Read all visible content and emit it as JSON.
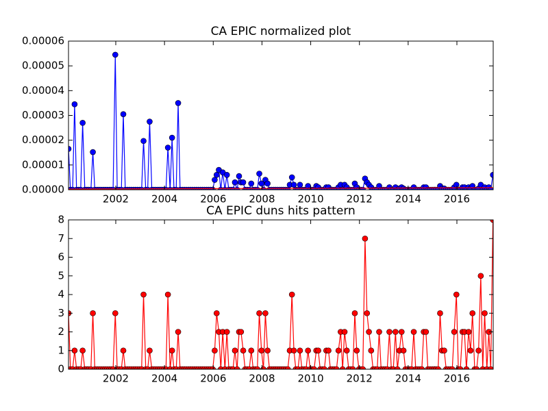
{
  "chart_data": [
    {
      "type": "line",
      "title": "CA EPIC normalized plot",
      "x": [
        2000.06,
        2000.14,
        2000.23,
        2000.31,
        2000.39,
        2000.48,
        2000.56,
        2000.64,
        2000.73,
        2000.81,
        2000.89,
        2000.98,
        2001.06,
        2001.14,
        2001.23,
        2001.31,
        2001.39,
        2001.48,
        2001.56,
        2001.64,
        2001.73,
        2001.81,
        2001.89,
        2001.98,
        2002.06,
        2002.14,
        2002.23,
        2002.31,
        2002.39,
        2002.48,
        2002.56,
        2002.64,
        2002.73,
        2002.81,
        2002.89,
        2002.98,
        2003.06,
        2003.14,
        2003.23,
        2003.31,
        2003.39,
        2003.48,
        2003.56,
        2003.64,
        2003.73,
        2003.81,
        2003.89,
        2003.98,
        2004.06,
        2004.14,
        2004.23,
        2004.31,
        2004.39,
        2004.48,
        2004.56,
        2004.64,
        2004.73,
        2004.81,
        2004.89,
        2004.98,
        2005.06,
        2005.14,
        2005.23,
        2005.31,
        2005.39,
        2005.48,
        2005.56,
        2005.64,
        2005.73,
        2005.81,
        2005.89,
        2005.98,
        2006.06,
        2006.14,
        2006.23,
        2006.31,
        2006.39,
        2006.48,
        2006.56,
        2006.64,
        2006.73,
        2006.81,
        2006.89,
        2006.98,
        2007.06,
        2007.14,
        2007.23,
        2007.31,
        2007.39,
        2007.48,
        2007.56,
        2007.64,
        2007.73,
        2007.81,
        2007.89,
        2007.98,
        2008.06,
        2008.14,
        2008.23,
        2008.31,
        2008.39,
        2008.48,
        2008.56,
        2008.64,
        2008.73,
        2008.81,
        2008.89,
        2008.98,
        2009.06,
        2009.14,
        2009.23,
        2009.31,
        2009.39,
        2009.48,
        2009.56,
        2009.64,
        2009.73,
        2009.81,
        2009.89,
        2009.98,
        2010.06,
        2010.14,
        2010.23,
        2010.31,
        2010.39,
        2010.48,
        2010.56,
        2010.64,
        2010.73,
        2010.81,
        2010.89,
        2010.98,
        2011.06,
        2011.14,
        2011.23,
        2011.31,
        2011.39,
        2011.48,
        2011.56,
        2011.64,
        2011.73,
        2011.81,
        2011.89,
        2011.98,
        2012.06,
        2012.14,
        2012.23,
        2012.31,
        2012.39,
        2012.48,
        2012.56,
        2012.64,
        2012.73,
        2012.81,
        2012.89,
        2012.98,
        2013.06,
        2013.14,
        2013.23,
        2013.31,
        2013.39,
        2013.48,
        2013.56,
        2013.64,
        2013.73,
        2013.81,
        2013.89,
        2013.98,
        2014.06,
        2014.14,
        2014.23,
        2014.31,
        2014.39,
        2014.48,
        2014.56,
        2014.64,
        2014.73,
        2014.81,
        2014.89,
        2014.98,
        2015.06,
        2015.14,
        2015.23,
        2015.31,
        2015.39,
        2015.48,
        2015.56,
        2015.64,
        2015.73,
        2015.81,
        2015.89,
        2015.98,
        2016.06,
        2016.14,
        2016.23,
        2016.31,
        2016.39,
        2016.48,
        2016.56,
        2016.64,
        2016.73,
        2016.81,
        2016.89,
        2016.98,
        2017.06,
        2017.14,
        2017.23,
        2017.31,
        2017.39,
        2017.48
      ],
      "series": [
        {
          "color": "#0000ff",
          "markers": true,
          "values": [
            1.65e-05,
            0,
            0,
            3.45e-05,
            0,
            0,
            0,
            2.7e-05,
            0,
            0,
            0,
            0,
            1.52e-05,
            0,
            0,
            0,
            0,
            0,
            0,
            0,
            0,
            0,
            0,
            5.45e-05,
            0,
            0,
            0,
            3.05e-05,
            0,
            0,
            0,
            0,
            0,
            0,
            0,
            0,
            0,
            1.97e-05,
            0,
            0,
            2.75e-05,
            0,
            0,
            0,
            0,
            0,
            0,
            0,
            0,
            1.7e-05,
            0,
            2.1e-05,
            0,
            0,
            3.5e-05,
            0,
            0,
            0,
            0,
            0,
            0,
            0,
            0,
            0,
            0,
            0,
            0,
            0,
            0,
            0,
            0,
            0,
            4e-06,
            6e-06,
            8e-06,
            0,
            7e-06,
            0,
            6e-06,
            0,
            0,
            0,
            3e-06,
            0,
            5.5e-06,
            3e-06,
            3e-06,
            0,
            0,
            0,
            2.5e-06,
            0,
            0,
            0,
            6.5e-06,
            2.5e-06,
            0,
            4e-06,
            2.5e-06,
            0,
            0,
            0,
            0,
            0,
            0,
            0,
            0,
            0,
            0,
            2e-06,
            5e-06,
            2e-06,
            0,
            0,
            2e-06,
            0,
            0,
            0,
            1.5e-06,
            0,
            0,
            0,
            1.5e-06,
            1e-06,
            0,
            0,
            0,
            1e-06,
            1e-06,
            0,
            0,
            0,
            0,
            1e-06,
            2e-06,
            0,
            2e-06,
            1e-06,
            0,
            0,
            0,
            2.5e-06,
            1e-06,
            0,
            0,
            0,
            4.5e-06,
            3e-06,
            2e-06,
            1e-06,
            0,
            0,
            0,
            1.5e-06,
            0,
            0,
            0,
            0,
            1e-06,
            0,
            0,
            1e-06,
            0,
            5e-07,
            1e-06,
            5e-07,
            0,
            0,
            0,
            0,
            1e-06,
            0,
            0,
            0,
            0,
            1e-06,
            1e-06,
            0,
            0,
            0,
            0,
            0,
            0,
            1.5e-06,
            5e-07,
            5e-07,
            0,
            0,
            0,
            0,
            1e-06,
            2e-06,
            0,
            0,
            1e-06,
            1e-06,
            0,
            1e-06,
            5e-07,
            1.5e-06,
            0,
            0,
            5e-07,
            2e-06,
            0,
            1e-06,
            0,
            1e-06,
            0,
            6e-06
          ]
        },
        {
          "color": "#ff0000",
          "markers": false,
          "x": [
            2000.06,
            2017.48
          ],
          "values": [
            3e-07,
            8e-07
          ]
        }
      ],
      "xlim": [
        2000.06,
        2017.49
      ],
      "xticks": [
        2002,
        2004,
        2006,
        2008,
        2010,
        2012,
        2014,
        2016
      ],
      "ylim": [
        0,
        6e-05
      ],
      "yticks": [
        {
          "value": 0,
          "label": "0.00000"
        },
        {
          "value": 1e-05,
          "label": "0.00001"
        },
        {
          "value": 2e-05,
          "label": "0.00002"
        },
        {
          "value": 3e-05,
          "label": "0.00003"
        },
        {
          "value": 4e-05,
          "label": "0.00004"
        },
        {
          "value": 5e-05,
          "label": "0.00005"
        },
        {
          "value": 6e-05,
          "label": "0.00006"
        }
      ]
    },
    {
      "type": "line",
      "title": "CA EPIC duns hits pattern",
      "x": [
        2000.06,
        2000.14,
        2000.23,
        2000.31,
        2000.39,
        2000.48,
        2000.56,
        2000.64,
        2000.73,
        2000.81,
        2000.89,
        2000.98,
        2001.06,
        2001.14,
        2001.23,
        2001.31,
        2001.39,
        2001.48,
        2001.56,
        2001.64,
        2001.73,
        2001.81,
        2001.89,
        2001.98,
        2002.06,
        2002.14,
        2002.23,
        2002.31,
        2002.39,
        2002.48,
        2002.56,
        2002.64,
        2002.73,
        2002.81,
        2002.89,
        2002.98,
        2003.06,
        2003.14,
        2003.23,
        2003.31,
        2003.39,
        2003.48,
        2003.56,
        2003.64,
        2003.73,
        2003.81,
        2003.89,
        2003.98,
        2004.06,
        2004.14,
        2004.23,
        2004.31,
        2004.39,
        2004.48,
        2004.56,
        2004.64,
        2004.73,
        2004.81,
        2004.89,
        2004.98,
        2005.06,
        2005.14,
        2005.23,
        2005.31,
        2005.39,
        2005.48,
        2005.56,
        2005.64,
        2005.73,
        2005.81,
        2005.89,
        2005.98,
        2006.06,
        2006.14,
        2006.23,
        2006.31,
        2006.39,
        2006.48,
        2006.56,
        2006.64,
        2006.73,
        2006.81,
        2006.89,
        2006.98,
        2007.06,
        2007.14,
        2007.23,
        2007.31,
        2007.39,
        2007.48,
        2007.56,
        2007.64,
        2007.73,
        2007.81,
        2007.89,
        2007.98,
        2008.06,
        2008.14,
        2008.23,
        2008.31,
        2008.39,
        2008.48,
        2008.56,
        2008.64,
        2008.73,
        2008.81,
        2008.89,
        2008.98,
        2009.06,
        2009.14,
        2009.23,
        2009.31,
        2009.39,
        2009.48,
        2009.56,
        2009.64,
        2009.73,
        2009.81,
        2009.89,
        2009.98,
        2010.06,
        2010.14,
        2010.23,
        2010.31,
        2010.39,
        2010.48,
        2010.56,
        2010.64,
        2010.73,
        2010.81,
        2010.89,
        2010.98,
        2011.06,
        2011.14,
        2011.23,
        2011.31,
        2011.39,
        2011.48,
        2011.56,
        2011.64,
        2011.73,
        2011.81,
        2011.89,
        2011.98,
        2012.06,
        2012.14,
        2012.23,
        2012.31,
        2012.39,
        2012.48,
        2012.56,
        2012.64,
        2012.73,
        2012.81,
        2012.89,
        2012.98,
        2013.06,
        2013.14,
        2013.23,
        2013.31,
        2013.39,
        2013.48,
        2013.56,
        2013.64,
        2013.73,
        2013.81,
        2013.89,
        2013.98,
        2014.06,
        2014.14,
        2014.23,
        2014.31,
        2014.39,
        2014.48,
        2014.56,
        2014.64,
        2014.73,
        2014.81,
        2014.89,
        2014.98,
        2015.06,
        2015.14,
        2015.23,
        2015.31,
        2015.39,
        2015.48,
        2015.56,
        2015.64,
        2015.73,
        2015.81,
        2015.89,
        2015.98,
        2016.06,
        2016.14,
        2016.23,
        2016.31,
        2016.39,
        2016.48,
        2016.56,
        2016.64,
        2016.73,
        2016.81,
        2016.89,
        2016.98,
        2017.06,
        2017.14,
        2017.23,
        2017.31,
        2017.39,
        2017.48
      ],
      "series": [
        {
          "color": "#ff0000",
          "markers": true,
          "values": [
            3,
            0,
            0,
            1,
            0,
            0,
            0,
            1,
            0,
            0,
            0,
            0,
            3,
            0,
            0,
            0,
            0,
            0,
            0,
            0,
            0,
            0,
            0,
            3,
            0,
            0,
            0,
            1,
            0,
            0,
            0,
            0,
            0,
            0,
            0,
            0,
            0,
            4,
            0,
            0,
            1,
            0,
            0,
            0,
            0,
            0,
            0,
            0,
            0,
            4,
            0,
            1,
            0,
            0,
            2,
            0,
            0,
            0,
            0,
            0,
            0,
            0,
            0,
            0,
            0,
            0,
            0,
            0,
            0,
            0,
            0,
            0,
            1,
            3,
            2,
            0,
            2,
            0,
            2,
            0,
            0,
            0,
            1,
            0,
            2,
            2,
            1,
            0,
            0,
            0,
            1,
            0,
            0,
            0,
            3,
            1,
            0,
            3,
            1,
            0,
            0,
            0,
            0,
            0,
            0,
            0,
            0,
            0,
            0,
            1,
            4,
            1,
            0,
            0,
            1,
            0,
            0,
            0,
            1,
            0,
            0,
            0,
            1,
            1,
            0,
            0,
            0,
            1,
            1,
            0,
            0,
            0,
            0,
            1,
            2,
            0,
            2,
            1,
            0,
            0,
            0,
            3,
            1,
            0,
            0,
            0,
            7,
            3,
            2,
            1,
            0,
            0,
            0,
            2,
            0,
            0,
            0,
            0,
            2,
            0,
            0,
            2,
            0,
            1,
            2,
            1,
            0,
            0,
            0,
            0,
            2,
            0,
            0,
            0,
            0,
            2,
            2,
            0,
            0,
            0,
            0,
            0,
            0,
            3,
            1,
            1,
            0,
            0,
            0,
            0,
            2,
            4,
            0,
            0,
            2,
            2,
            0,
            2,
            1,
            3,
            0,
            0,
            1,
            5,
            0,
            3,
            0,
            2,
            0,
            8
          ]
        }
      ],
      "xlim": [
        2000.06,
        2017.49
      ],
      "xticks": [
        2002,
        2004,
        2006,
        2008,
        2010,
        2012,
        2014,
        2016
      ],
      "ylim": [
        0,
        8
      ],
      "yticks": [
        0,
        1,
        2,
        3,
        4,
        5,
        6,
        7,
        8
      ]
    }
  ]
}
